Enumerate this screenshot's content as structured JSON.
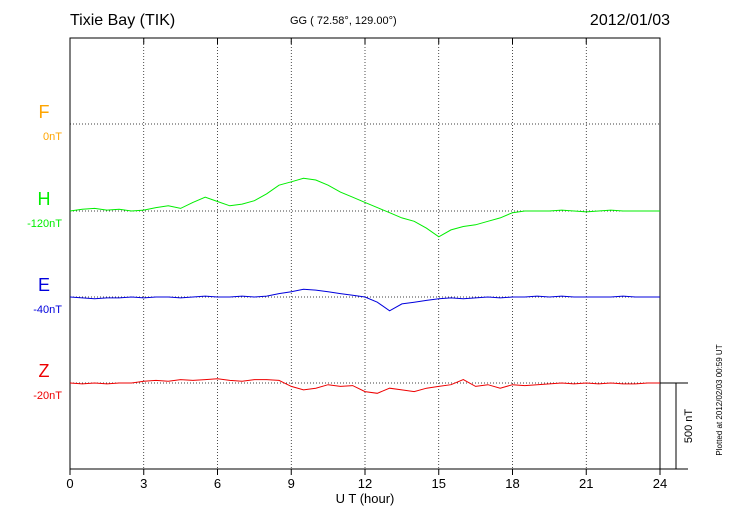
{
  "header": {
    "station": "Tixie Bay (TIK)",
    "coords": "GG ( 72.58°, 129.00°)",
    "date": "2012/01/03"
  },
  "plotted_note": "Plotted at 2012/02/03 00:59 UT",
  "scale_bar_label": "500 nT",
  "chart_data": {
    "type": "line",
    "xlabel": "U T (hour)",
    "xlim": [
      0,
      24
    ],
    "xticks": [
      0,
      3,
      6,
      9,
      12,
      15,
      18,
      21,
      24
    ],
    "grid": true,
    "scale_nT": 500,
    "series": [
      {
        "name": "F",
        "offset_label": "0nT",
        "color": "#ffa500",
        "values": []
      },
      {
        "name": "H",
        "offset_label": "-120nT",
        "color": "#00ee00",
        "x": [
          0,
          0.5,
          1,
          1.5,
          2,
          2.5,
          3,
          3.5,
          4,
          4.5,
          5,
          5.5,
          6,
          6.5,
          7,
          7.5,
          8,
          8.5,
          9,
          9.5,
          10,
          10.5,
          11,
          11.5,
          12,
          12.5,
          13,
          13.5,
          14,
          14.5,
          15,
          15.5,
          16,
          16.5,
          17,
          17.5,
          18,
          18.5,
          19,
          19.5,
          20,
          20.5,
          21,
          21.5,
          22,
          22.5,
          23,
          23.5,
          24
        ],
        "values": [
          0,
          10,
          15,
          5,
          10,
          0,
          5,
          20,
          30,
          15,
          50,
          80,
          55,
          30,
          40,
          60,
          100,
          150,
          170,
          190,
          180,
          150,
          110,
          80,
          50,
          20,
          -10,
          -40,
          -60,
          -100,
          -150,
          -110,
          -90,
          -80,
          -60,
          -40,
          -10,
          0,
          0,
          0,
          5,
          0,
          -5,
          0,
          5,
          0,
          0,
          0,
          0
        ]
      },
      {
        "name": "E",
        "offset_label": "-40nT",
        "color": "#0000dd",
        "x": [
          0,
          0.5,
          1,
          1.5,
          2,
          2.5,
          3,
          3.5,
          4,
          4.5,
          5,
          5.5,
          6,
          6.5,
          7,
          7.5,
          8,
          8.5,
          9,
          9.5,
          10,
          10.5,
          11,
          11.5,
          12,
          12.5,
          13,
          13.5,
          14,
          14.5,
          15,
          15.5,
          16,
          16.5,
          17,
          17.5,
          18,
          18.5,
          19,
          19.5,
          20,
          20.5,
          21,
          21.5,
          22,
          22.5,
          23,
          23.5,
          24
        ],
        "values": [
          0,
          -5,
          -10,
          -5,
          -5,
          0,
          -5,
          0,
          0,
          -5,
          0,
          5,
          0,
          0,
          5,
          0,
          5,
          20,
          30,
          45,
          40,
          30,
          20,
          10,
          0,
          -30,
          -80,
          -40,
          -30,
          -20,
          -10,
          -5,
          -10,
          -5,
          0,
          -5,
          0,
          0,
          5,
          0,
          5,
          0,
          0,
          0,
          0,
          5,
          0,
          0,
          0
        ]
      },
      {
        "name": "Z",
        "offset_label": "-20nT",
        "color": "#ee0000",
        "x": [
          0,
          0.5,
          1,
          1.5,
          2,
          2.5,
          3,
          3.5,
          4,
          4.5,
          5,
          5.5,
          6,
          6.5,
          7,
          7.5,
          8,
          8.5,
          9,
          9.5,
          10,
          10.5,
          11,
          11.5,
          12,
          12.5,
          13,
          13.5,
          14,
          14.5,
          15,
          15.5,
          16,
          16.5,
          17,
          17.5,
          18,
          18.5,
          19,
          19.5,
          20,
          20.5,
          21,
          21.5,
          22,
          22.5,
          23,
          23.5,
          24
        ],
        "values": [
          0,
          -5,
          0,
          -5,
          0,
          0,
          10,
          15,
          10,
          20,
          15,
          20,
          25,
          15,
          10,
          20,
          20,
          15,
          -20,
          -40,
          -30,
          -10,
          -20,
          -15,
          -50,
          -60,
          -30,
          -40,
          -50,
          -30,
          -20,
          -10,
          20,
          -20,
          -10,
          -30,
          -10,
          -15,
          -10,
          -5,
          0,
          -5,
          0,
          -5,
          0,
          -5,
          -5,
          0,
          0
        ]
      }
    ]
  }
}
